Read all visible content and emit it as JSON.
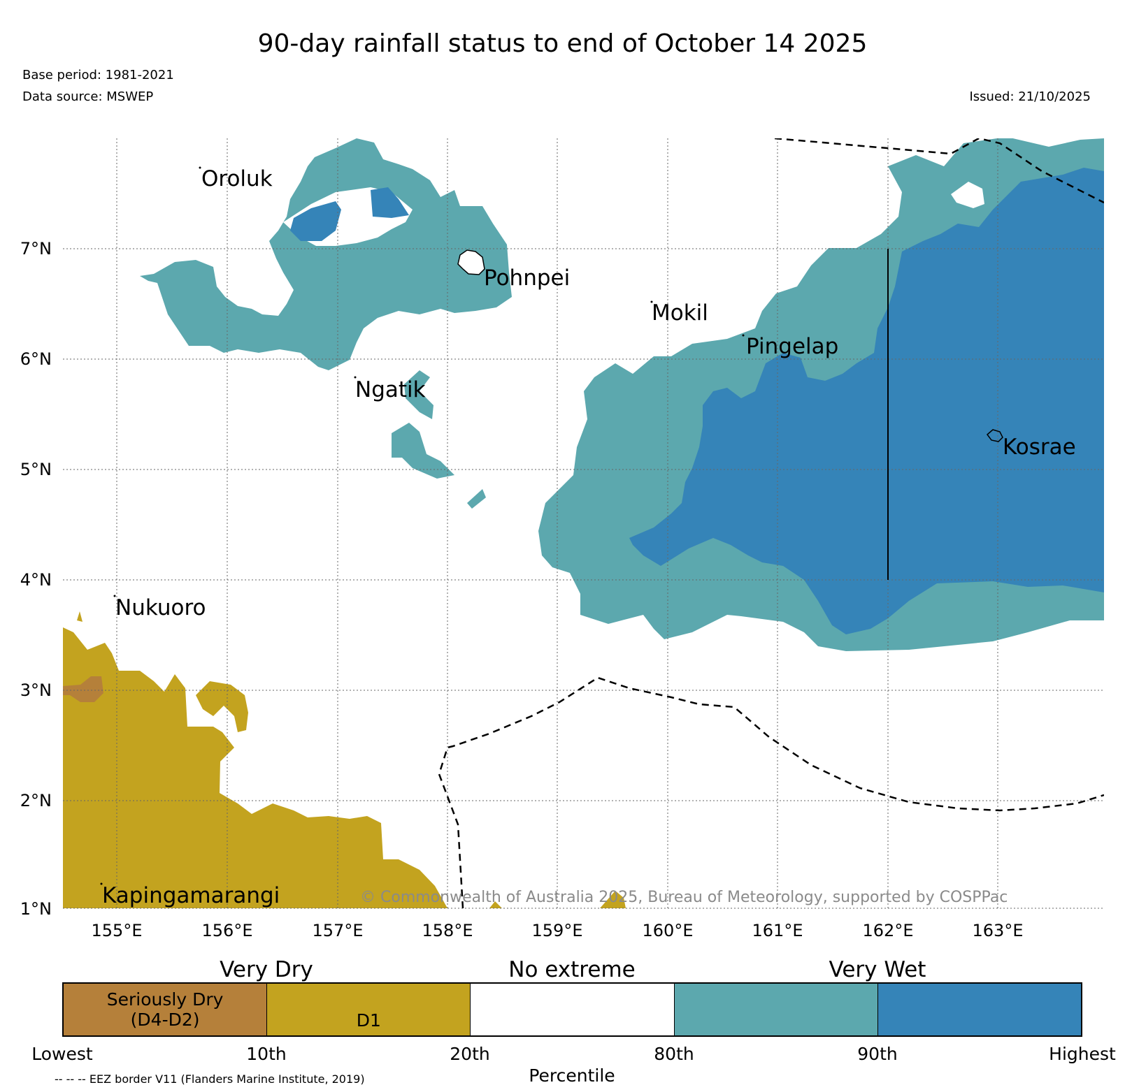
{
  "title": "90-day rainfall status to end of October 14 2025",
  "meta": {
    "base_period": "Base period: 1981-2021",
    "data_source": "Data source: MSWEP",
    "issued": "Issued: 21/10/2025"
  },
  "axes": {
    "lon_ticks": [
      "155°E",
      "156°E",
      "157°E",
      "158°E",
      "159°E",
      "160°E",
      "161°E",
      "162°E",
      "163°E"
    ],
    "lat_ticks": [
      "7°N",
      "6°N",
      "5°N",
      "4°N",
      "3°N",
      "2°N",
      "1°N"
    ]
  },
  "islands": [
    {
      "name": "Oroluk"
    },
    {
      "name": "Pohnpei"
    },
    {
      "name": "Mokil"
    },
    {
      "name": "Pingelap"
    },
    {
      "name": "Ngatik"
    },
    {
      "name": "Kosrae"
    },
    {
      "name": "Nukuoro"
    },
    {
      "name": "Kapingamarangi"
    }
  ],
  "copyright": "© Commonwealth of Australia 2025, Bureau of Meteorology, supported by COSPPac",
  "colorbar": {
    "categories": [
      "Very Dry",
      "No extreme",
      "Very Wet"
    ],
    "segments": [
      {
        "label_line1": "Seriously Dry",
        "label_line2": "(D4-D2)",
        "color": "#b5803a"
      },
      {
        "label_line1": "",
        "label_line2": "D1",
        "color": "#c3a31f"
      },
      {
        "label_line1": "",
        "label_line2": "",
        "color": "#ffffff"
      },
      {
        "label_line1": "",
        "label_line2": "",
        "color": "#5ca8ae"
      },
      {
        "label_line1": "",
        "label_line2": "",
        "color": "#3584b8"
      }
    ],
    "percentile_labels": [
      "Lowest",
      "10th",
      "20th",
      "80th",
      "90th",
      "Highest"
    ],
    "axis_label": "Percentile"
  },
  "eez_note": "-- -- -- EEZ border V11 (Flanders Marine Institute, 2019)",
  "colors": {
    "seriously_dry": "#b5803a",
    "d1": "#c3a31f",
    "very_wet_80": "#5ca8ae",
    "very_wet_90": "#3584b8",
    "copyright_text": "#8a8a8a"
  }
}
